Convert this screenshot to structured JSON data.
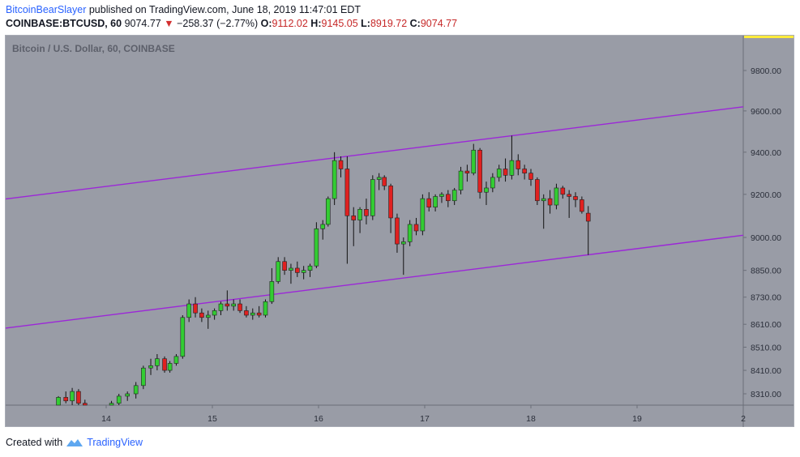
{
  "header": {
    "author": "BitcoinBearSlayer",
    "published_text": "published on TradingView.com, June 18, 2019 11:47:01 EDT"
  },
  "quote": {
    "symbol": "COINBASE:BTCUSD, 60",
    "last": "9074.77",
    "change": "−258.37 (−2.77%)",
    "open_label": "O:",
    "open": "9112.02",
    "high_label": "H:",
    "high": "9145.05",
    "low_label": "L:",
    "low": "8919.72",
    "close_label": "C:",
    "close": "9074.77"
  },
  "chart_title": "Bitcoin / U.S. Dollar, 60, COINBASE",
  "footer": {
    "created_with": "Created with",
    "brand": "TradingView"
  },
  "colors": {
    "up": "#33cc33",
    "down": "#e02020",
    "channel": "#9c27d8",
    "background": "#999ca6",
    "price_marker": "#ffeb3b"
  },
  "chart_data": {
    "type": "candlestick",
    "title": "Bitcoin / U.S. Dollar, 60, COINBASE",
    "xlabel": "",
    "ylabel": "",
    "x_ticks": [
      "14",
      "15",
      "16",
      "17",
      "18",
      "19",
      "2"
    ],
    "y_ticks": [
      "9800.00",
      "9600.00",
      "9400.00",
      "9200.00",
      "9000.00",
      "8850.00",
      "8730.00",
      "8610.00",
      "8510.00",
      "8410.00",
      "8310.00"
    ],
    "y_scale": "log",
    "grid": false,
    "channel_lines": [
      {
        "name": "upper",
        "from": {
          "x": 13.0,
          "y": 9175
        },
        "to": {
          "x": 20.0,
          "y": 9620
        }
      },
      {
        "name": "lower",
        "from": {
          "x": 13.0,
          "y": 8590
        },
        "to": {
          "x": 20.0,
          "y": 9010
        }
      }
    ],
    "candles": [
      {
        "x": 13.55,
        "o": 8245,
        "h": 8300,
        "l": 8230,
        "c": 8295
      },
      {
        "x": 13.62,
        "o": 8295,
        "h": 8320,
        "l": 8270,
        "c": 8280
      },
      {
        "x": 13.68,
        "o": 8280,
        "h": 8335,
        "l": 8250,
        "c": 8320
      },
      {
        "x": 13.74,
        "o": 8320,
        "h": 8330,
        "l": 8260,
        "c": 8270
      },
      {
        "x": 13.8,
        "o": 8270,
        "h": 8285,
        "l": 8230,
        "c": 8240
      },
      {
        "x": 14.05,
        "o": 8240,
        "h": 8280,
        "l": 8230,
        "c": 8270
      },
      {
        "x": 14.12,
        "o": 8270,
        "h": 8310,
        "l": 8255,
        "c": 8300
      },
      {
        "x": 14.2,
        "o": 8300,
        "h": 8320,
        "l": 8280,
        "c": 8310
      },
      {
        "x": 14.28,
        "o": 8310,
        "h": 8360,
        "l": 8290,
        "c": 8345
      },
      {
        "x": 14.35,
        "o": 8345,
        "h": 8430,
        "l": 8330,
        "c": 8420
      },
      {
        "x": 14.42,
        "o": 8420,
        "h": 8460,
        "l": 8390,
        "c": 8430
      },
      {
        "x": 14.48,
        "o": 8430,
        "h": 8480,
        "l": 8410,
        "c": 8460
      },
      {
        "x": 14.55,
        "o": 8460,
        "h": 8470,
        "l": 8400,
        "c": 8410
      },
      {
        "x": 14.6,
        "o": 8410,
        "h": 8450,
        "l": 8400,
        "c": 8440
      },
      {
        "x": 14.66,
        "o": 8440,
        "h": 8480,
        "l": 8430,
        "c": 8470
      },
      {
        "x": 14.72,
        "o": 8470,
        "h": 8650,
        "l": 8460,
        "c": 8640
      },
      {
        "x": 14.78,
        "o": 8640,
        "h": 8720,
        "l": 8620,
        "c": 8700
      },
      {
        "x": 14.84,
        "o": 8700,
        "h": 8730,
        "l": 8640,
        "c": 8660
      },
      {
        "x": 14.9,
        "o": 8660,
        "h": 8680,
        "l": 8620,
        "c": 8640
      },
      {
        "x": 14.96,
        "o": 8640,
        "h": 8670,
        "l": 8590,
        "c": 8650
      },
      {
        "x": 15.02,
        "o": 8650,
        "h": 8680,
        "l": 8630,
        "c": 8670
      },
      {
        "x": 15.08,
        "o": 8670,
        "h": 8710,
        "l": 8650,
        "c": 8700
      },
      {
        "x": 15.14,
        "o": 8700,
        "h": 8760,
        "l": 8670,
        "c": 8690
      },
      {
        "x": 15.2,
        "o": 8690,
        "h": 8720,
        "l": 8670,
        "c": 8700
      },
      {
        "x": 15.26,
        "o": 8700,
        "h": 8720,
        "l": 8660,
        "c": 8670
      },
      {
        "x": 15.32,
        "o": 8670,
        "h": 8690,
        "l": 8640,
        "c": 8650
      },
      {
        "x": 15.38,
        "o": 8650,
        "h": 8680,
        "l": 8630,
        "c": 8660
      },
      {
        "x": 15.44,
        "o": 8660,
        "h": 8690,
        "l": 8640,
        "c": 8650
      },
      {
        "x": 15.5,
        "o": 8650,
        "h": 8720,
        "l": 8640,
        "c": 8710
      },
      {
        "x": 15.56,
        "o": 8710,
        "h": 8860,
        "l": 8700,
        "c": 8800
      },
      {
        "x": 15.62,
        "o": 8800,
        "h": 8910,
        "l": 8790,
        "c": 8890
      },
      {
        "x": 15.68,
        "o": 8890,
        "h": 8910,
        "l": 8830,
        "c": 8850
      },
      {
        "x": 15.74,
        "o": 8850,
        "h": 8880,
        "l": 8790,
        "c": 8860
      },
      {
        "x": 15.8,
        "o": 8860,
        "h": 8890,
        "l": 8820,
        "c": 8840
      },
      {
        "x": 15.86,
        "o": 8840,
        "h": 8870,
        "l": 8810,
        "c": 8850
      },
      {
        "x": 15.92,
        "o": 8850,
        "h": 8880,
        "l": 8820,
        "c": 8870
      },
      {
        "x": 15.98,
        "o": 8870,
        "h": 9070,
        "l": 8860,
        "c": 9040
      },
      {
        "x": 16.04,
        "o": 9040,
        "h": 9080,
        "l": 8990,
        "c": 9060
      },
      {
        "x": 16.09,
        "o": 9060,
        "h": 9190,
        "l": 9050,
        "c": 9180
      },
      {
        "x": 16.15,
        "o": 9180,
        "h": 9400,
        "l": 9150,
        "c": 9360
      },
      {
        "x": 16.21,
        "o": 9360,
        "h": 9380,
        "l": 9280,
        "c": 9320
      },
      {
        "x": 16.27,
        "o": 9320,
        "h": 9380,
        "l": 8880,
        "c": 9100
      },
      {
        "x": 16.33,
        "o": 9100,
        "h": 9140,
        "l": 8960,
        "c": 9080
      },
      {
        "x": 16.39,
        "o": 9080,
        "h": 9140,
        "l": 9020,
        "c": 9130
      },
      {
        "x": 16.45,
        "o": 9130,
        "h": 9180,
        "l": 9060,
        "c": 9100
      },
      {
        "x": 16.51,
        "o": 9100,
        "h": 9290,
        "l": 9080,
        "c": 9270
      },
      {
        "x": 16.57,
        "o": 9270,
        "h": 9300,
        "l": 9220,
        "c": 9280
      },
      {
        "x": 16.62,
        "o": 9280,
        "h": 9290,
        "l": 9220,
        "c": 9240
      },
      {
        "x": 16.68,
        "o": 9240,
        "h": 9250,
        "l": 9020,
        "c": 9090
      },
      {
        "x": 16.74,
        "o": 9090,
        "h": 9110,
        "l": 8930,
        "c": 8970
      },
      {
        "x": 16.8,
        "o": 8970,
        "h": 9000,
        "l": 8830,
        "c": 8980
      },
      {
        "x": 16.86,
        "o": 8980,
        "h": 9080,
        "l": 8960,
        "c": 9060
      },
      {
        "x": 16.92,
        "o": 9060,
        "h": 9090,
        "l": 9010,
        "c": 9030
      },
      {
        "x": 16.98,
        "o": 9030,
        "h": 9200,
        "l": 9010,
        "c": 9180
      },
      {
        "x": 17.04,
        "o": 9180,
        "h": 9210,
        "l": 9120,
        "c": 9140
      },
      {
        "x": 17.1,
        "o": 9140,
        "h": 9200,
        "l": 9120,
        "c": 9190
      },
      {
        "x": 17.16,
        "o": 9190,
        "h": 9210,
        "l": 9160,
        "c": 9200
      },
      {
        "x": 17.22,
        "o": 9200,
        "h": 9220,
        "l": 9140,
        "c": 9170
      },
      {
        "x": 17.28,
        "o": 9170,
        "h": 9230,
        "l": 9150,
        "c": 9220
      },
      {
        "x": 17.34,
        "o": 9220,
        "h": 9330,
        "l": 9200,
        "c": 9310
      },
      {
        "x": 17.4,
        "o": 9310,
        "h": 9340,
        "l": 9260,
        "c": 9300
      },
      {
        "x": 17.46,
        "o": 9300,
        "h": 9440,
        "l": 9290,
        "c": 9410
      },
      {
        "x": 17.52,
        "o": 9410,
        "h": 9420,
        "l": 9180,
        "c": 9210
      },
      {
        "x": 17.58,
        "o": 9210,
        "h": 9260,
        "l": 9150,
        "c": 9230
      },
      {
        "x": 17.64,
        "o": 9230,
        "h": 9300,
        "l": 9210,
        "c": 9280
      },
      {
        "x": 17.7,
        "o": 9280,
        "h": 9340,
        "l": 9260,
        "c": 9320
      },
      {
        "x": 17.76,
        "o": 9320,
        "h": 9370,
        "l": 9260,
        "c": 9290
      },
      {
        "x": 17.82,
        "o": 9290,
        "h": 9480,
        "l": 9270,
        "c": 9360
      },
      {
        "x": 17.88,
        "o": 9360,
        "h": 9390,
        "l": 9290,
        "c": 9320
      },
      {
        "x": 17.94,
        "o": 9320,
        "h": 9340,
        "l": 9270,
        "c": 9300
      },
      {
        "x": 18.0,
        "o": 9300,
        "h": 9320,
        "l": 9240,
        "c": 9270
      },
      {
        "x": 18.06,
        "o": 9270,
        "h": 9280,
        "l": 9150,
        "c": 9170
      },
      {
        "x": 18.12,
        "o": 9170,
        "h": 9200,
        "l": 9040,
        "c": 9180
      },
      {
        "x": 18.18,
        "o": 9180,
        "h": 9220,
        "l": 9110,
        "c": 9150
      },
      {
        "x": 18.24,
        "o": 9150,
        "h": 9250,
        "l": 9130,
        "c": 9230
      },
      {
        "x": 18.3,
        "o": 9230,
        "h": 9240,
        "l": 9180,
        "c": 9200
      },
      {
        "x": 18.36,
        "o": 9200,
        "h": 9220,
        "l": 9090,
        "c": 9190
      },
      {
        "x": 18.42,
        "o": 9190,
        "h": 9210,
        "l": 9140,
        "c": 9175
      },
      {
        "x": 18.48,
        "o": 9175,
        "h": 9190,
        "l": 9110,
        "c": 9120
      },
      {
        "x": 18.54,
        "o": 9112.02,
        "h": 9145.05,
        "l": 8919.72,
        "c": 9074.77
      }
    ]
  }
}
